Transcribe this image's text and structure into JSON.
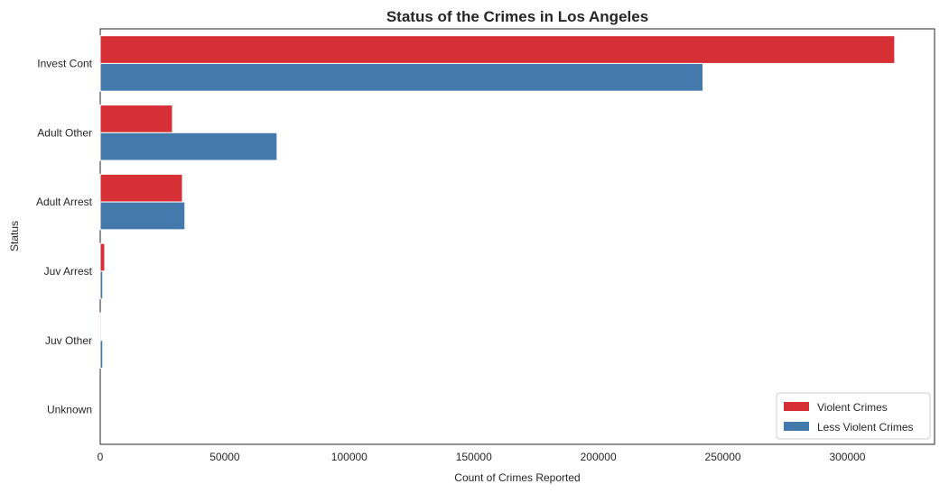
{
  "chart_data": {
    "type": "bar",
    "orientation": "horizontal",
    "title": "Status of the Crimes in Los Angeles",
    "xlabel": "Count of Crimes Reported",
    "ylabel": "Status",
    "categories": [
      "Invest Cont",
      "Adult Other",
      "Adult Arrest",
      "Juv Arrest",
      "Juv Other",
      "Unknown"
    ],
    "series": [
      {
        "name": "Violent Crimes",
        "color": "#d62f35",
        "values": [
          319000,
          29000,
          33000,
          1800,
          400,
          0
        ]
      },
      {
        "name": "Less Violent Crimes",
        "color": "#4379ab",
        "values": [
          242000,
          71000,
          34000,
          1000,
          1000,
          0
        ]
      }
    ],
    "xlim": [
      0,
      335000
    ],
    "xticks": [
      0,
      50000,
      100000,
      150000,
      200000,
      250000,
      300000
    ],
    "xtick_labels": [
      "0",
      "50000",
      "100000",
      "150000",
      "200000",
      "250000",
      "300000"
    ],
    "grid": false,
    "legend_position": "lower-right"
  }
}
